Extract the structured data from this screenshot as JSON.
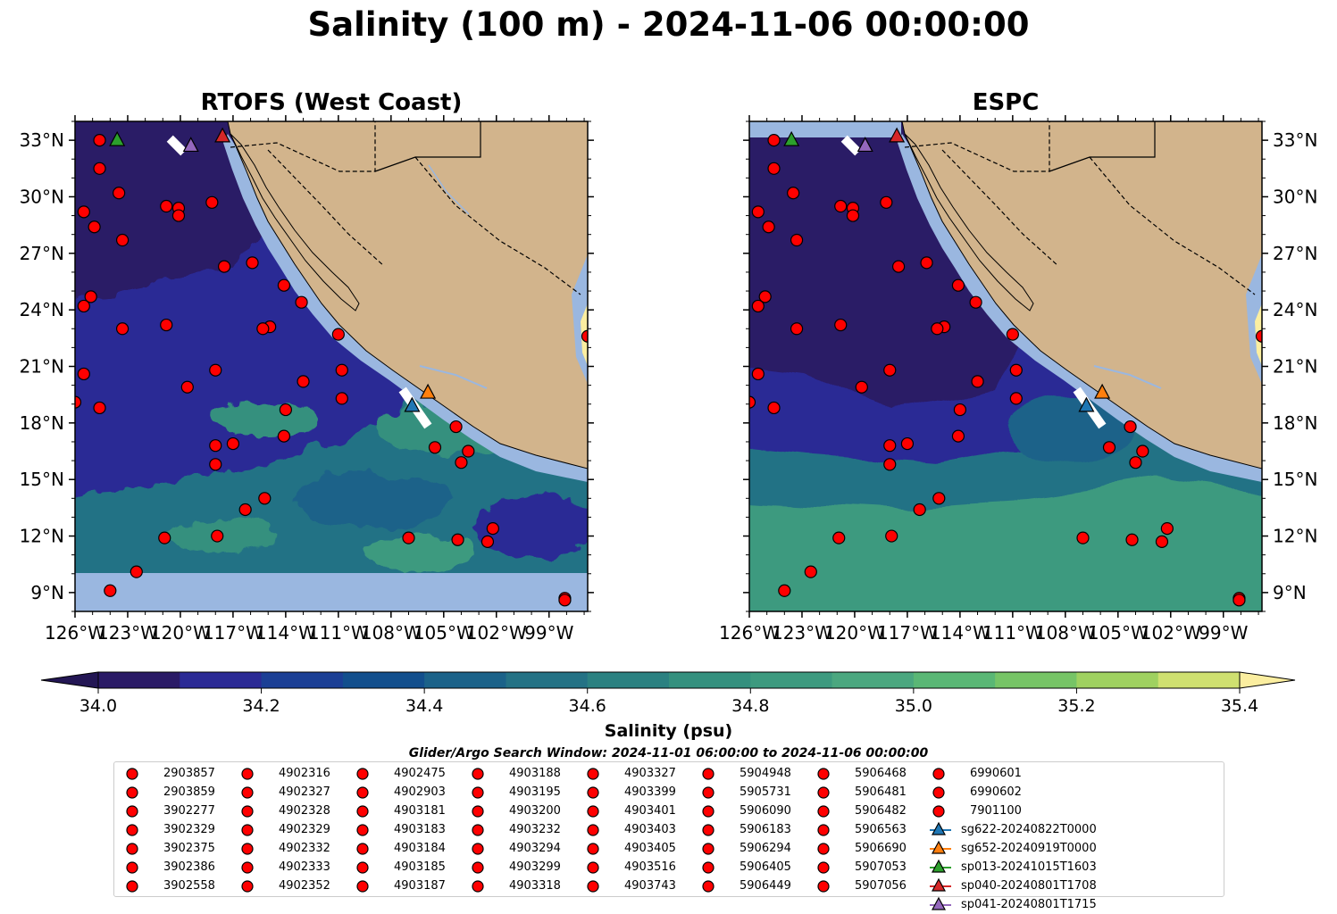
{
  "title": "Salinity (100 m) - 2024-11-06 00:00:00",
  "panels": [
    {
      "title": "RTOFS (West Coast)"
    },
    {
      "title": "ESPC"
    }
  ],
  "axes": {
    "lon_tick_labels": [
      "126°W",
      "123°W",
      "120°W",
      "117°W",
      "114°W",
      "111°W",
      "108°W",
      "105°W",
      "102°W",
      "99°W"
    ],
    "lat_tick_labels": [
      "33°N",
      "30°N",
      "27°N",
      "24°N",
      "21°N",
      "18°N",
      "15°N",
      "12°N",
      "9°N"
    ],
    "lon_ticks": [
      -126,
      -123,
      -120,
      -117,
      -114,
      -111,
      -108,
      -105,
      -102,
      -99
    ],
    "lat_ticks": [
      33,
      30,
      27,
      24,
      21,
      18,
      15,
      12,
      9
    ],
    "lon_range": [
      -126,
      -96.8
    ],
    "lat_range": [
      8,
      34
    ]
  },
  "colorbar": {
    "label": "Salinity (psu)",
    "tick_labels": [
      "34.0",
      "34.2",
      "34.4",
      "34.6",
      "34.8",
      "35.0",
      "35.2",
      "35.4"
    ],
    "ticks": [
      34.0,
      34.2,
      34.4,
      34.6,
      34.8,
      35.0,
      35.2,
      35.4
    ],
    "range": [
      34.0,
      35.4
    ],
    "extend": "both",
    "colors": [
      "#2a1a66",
      "#2b2a95",
      "#1b3f95",
      "#124f8d",
      "#1b6289",
      "#247285",
      "#2b8181",
      "#34907e",
      "#3d9a7f",
      "#4ba77f",
      "#5ab775",
      "#76c466",
      "#9fd160",
      "#cfe070"
    ],
    "under_color": "#231654",
    "over_color": "#fbeea0"
  },
  "colors": {
    "land": "#d2b48c",
    "shelf": "#9ab7e0",
    "argo": "#ff0000"
  },
  "search_window": "Glider/Argo Search Window: 2024-11-01 06:00:00 to 2024-11-06 00:00:00",
  "legend": {
    "argo": [
      "2903857",
      "2903859",
      "3902277",
      "3902329",
      "3902375",
      "3902386",
      "3902558",
      "4902316",
      "4902327",
      "4902328",
      "4902329",
      "4902332",
      "4902333",
      "4902352",
      "4902475",
      "4902903",
      "4903181",
      "4903183",
      "4903184",
      "4903185",
      "4903187",
      "4903188",
      "4903195",
      "4903200",
      "4903232",
      "4903294",
      "4903299",
      "4903318",
      "4903327",
      "4903399",
      "4903401",
      "4903403",
      "4903405",
      "4903516",
      "4903743",
      "5904948",
      "5905731",
      "5906090",
      "5906183",
      "5906294",
      "5906405",
      "5906449",
      "5906468",
      "5906481",
      "5906482",
      "5906563",
      "5906690",
      "5907053",
      "5907056",
      "6990601",
      "6990602",
      "7901100"
    ],
    "gliders": [
      {
        "name": "sg622-20240822T0000",
        "color": "#1f77b4"
      },
      {
        "name": "sg652-20240919T0000",
        "color": "#ff7f0e"
      },
      {
        "name": "sp013-20241015T1603",
        "color": "#2ca02c"
      },
      {
        "name": "sp040-20240801T1708",
        "color": "#d62728"
      },
      {
        "name": "sp041-20240801T1715",
        "color": "#9467bd"
      }
    ]
  },
  "chart_data": {
    "type": "scatter",
    "argo_positions": [
      [
        -124.6,
        33.0
      ],
      [
        -124.6,
        31.5
      ],
      [
        -123.5,
        30.2
      ],
      [
        -125.5,
        29.2
      ],
      [
        -124.9,
        28.4
      ],
      [
        -123.3,
        27.7
      ],
      [
        -120.8,
        29.5
      ],
      [
        -120.1,
        29.4
      ],
      [
        -120.1,
        29.0
      ],
      [
        -118.2,
        29.7
      ],
      [
        -117.5,
        26.3
      ],
      [
        -115.9,
        26.5
      ],
      [
        -125.1,
        24.7
      ],
      [
        -125.5,
        24.2
      ],
      [
        -123.3,
        23.0
      ],
      [
        -120.8,
        23.2
      ],
      [
        -114.1,
        25.3
      ],
      [
        -113.1,
        24.4
      ],
      [
        -114.9,
        23.1
      ],
      [
        -115.3,
        23.0
      ],
      [
        -111.0,
        22.7
      ],
      [
        -125.5,
        20.6
      ],
      [
        -126.0,
        19.1
      ],
      [
        -124.6,
        18.8
      ],
      [
        -119.6,
        19.9
      ],
      [
        -118.0,
        20.8
      ],
      [
        -113.0,
        20.2
      ],
      [
        -110.8,
        20.8
      ],
      [
        -110.8,
        19.3
      ],
      [
        -114.0,
        18.7
      ],
      [
        -114.1,
        17.3
      ],
      [
        -118.0,
        16.8
      ],
      [
        -117.0,
        16.9
      ],
      [
        -118.0,
        15.8
      ],
      [
        -116.3,
        13.4
      ],
      [
        -115.2,
        14.0
      ],
      [
        -120.9,
        11.9
      ],
      [
        -117.9,
        12.0
      ],
      [
        -122.5,
        10.1
      ],
      [
        -124.0,
        9.1
      ],
      [
        -104.3,
        17.8
      ],
      [
        -105.5,
        16.7
      ],
      [
        -103.6,
        16.5
      ],
      [
        -104.0,
        15.9
      ],
      [
        -107.0,
        11.9
      ],
      [
        -104.2,
        11.8
      ],
      [
        -102.5,
        11.7
      ],
      [
        -102.2,
        12.4
      ],
      [
        -98.1,
        8.7
      ],
      [
        -98.1,
        8.6
      ],
      [
        -96.8,
        22.6
      ]
    ],
    "glider_positions": [
      {
        "name": "sg622-20240822T0000",
        "lon": -106.8,
        "lat": 18.9
      },
      {
        "name": "sg652-20240919T0000",
        "lon": -105.9,
        "lat": 19.6
      },
      {
        "name": "sp013-20241015T1603",
        "lon": -123.6,
        "lat": 33.0
      },
      {
        "name": "sp040-20240801T1708",
        "lon": -117.6,
        "lat": 33.2
      },
      {
        "name": "sp041-20240801T1715",
        "lon": -119.4,
        "lat": 32.7
      }
    ]
  }
}
